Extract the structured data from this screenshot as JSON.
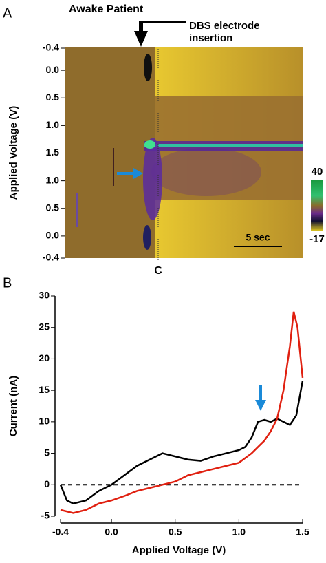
{
  "chart_data": [
    {
      "type": "colorplot",
      "panel": "A",
      "annotations": [
        "Awake Patient",
        "DBS electrode",
        "insertion"
      ],
      "ylabel": "Applied Voltage (V)",
      "yticks": [
        -0.4,
        {
          "value": 0,
          "label": "0.0"
        },
        0.5,
        {
          "value": 1,
          "label": "1.0"
        },
        1.5,
        {
          "value": 1,
          "label": "1.0"
        },
        0.5,
        {
          "value": 0,
          "label": "0.0"
        },
        -0.4
      ],
      "colorbar_ticks": [
        40,
        -17
      ],
      "scale_label": "5 sec",
      "marker": "C"
    },
    {
      "type": "line",
      "panel": "B",
      "xlabel": "Applied Voltage (V)",
      "ylabel": "Current (nA)",
      "xlim": [
        -0.4,
        1.5
      ],
      "ylim": [
        -5,
        30
      ],
      "xticks": [
        -0.4,
        {
          "value": 0,
          "label": "0.0"
        },
        0.5,
        {
          "value": 1,
          "label": "1.0"
        },
        1.5
      ],
      "yticks": [
        -5,
        0,
        5,
        10,
        15,
        20,
        25,
        30
      ],
      "hline": 0,
      "series": [
        {
          "color": "#000000",
          "x": [
            -0.4,
            -0.35,
            -0.3,
            -0.2,
            -0.1,
            0.0,
            0.1,
            0.2,
            0.3,
            0.4,
            0.5,
            0.6,
            0.7,
            0.8,
            0.9,
            1.0,
            1.05,
            1.1,
            1.15,
            1.2,
            1.25,
            1.3,
            1.35,
            1.4,
            1.45,
            1.5
          ],
          "values": [
            0,
            -2.5,
            -3,
            -2.5,
            -1,
            0,
            1.5,
            3,
            4,
            5,
            4.5,
            4,
            3.8,
            4.5,
            5,
            5.5,
            6,
            7.5,
            10,
            10.3,
            10,
            10.5,
            10,
            9.5,
            11,
            16.5
          ]
        },
        {
          "color": "#e02010",
          "x": [
            -0.4,
            -0.3,
            -0.2,
            -0.1,
            0.0,
            0.1,
            0.2,
            0.3,
            0.4,
            0.5,
            0.6,
            0.7,
            0.8,
            0.9,
            1.0,
            1.1,
            1.2,
            1.25,
            1.3,
            1.35,
            1.4,
            1.43,
            1.46,
            1.5
          ],
          "values": [
            -4,
            -4.5,
            -4,
            -3,
            -2.5,
            -1.8,
            -1,
            -0.5,
            0,
            0.5,
            1.5,
            2,
            2.5,
            3,
            3.5,
            5,
            7,
            8.5,
            10.5,
            15,
            22,
            27.5,
            25,
            17
          ]
        }
      ]
    }
  ]
}
